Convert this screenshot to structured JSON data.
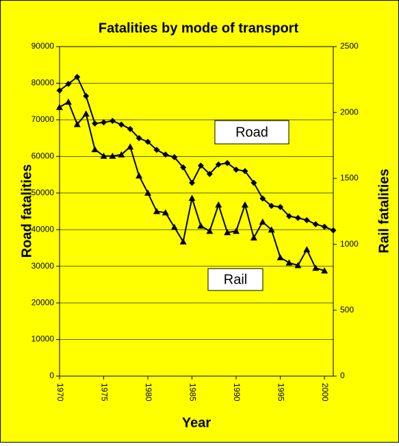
{
  "chart_data": {
    "type": "line",
    "title": "Fatalities by mode of transport",
    "xlabel": "Year",
    "ylabel": "Road fatalities",
    "y2label": "Rail fatalities",
    "annotations": [
      "Road",
      "Rail"
    ],
    "x": [
      1970,
      1971,
      1972,
      1973,
      1974,
      1975,
      1976,
      1977,
      1978,
      1979,
      1980,
      1981,
      1982,
      1983,
      1984,
      1985,
      1986,
      1987,
      1988,
      1989,
      1990,
      1991,
      1992,
      1993,
      1994,
      1995,
      1996,
      1997,
      1998,
      1999,
      2000,
      2001
    ],
    "series": [
      {
        "name": "Road",
        "color": "#000000",
        "marker": "diamond",
        "values": [
          78000,
          79800,
          81700,
          76500,
          69000,
          69300,
          69700,
          68700,
          67500,
          65000,
          64000,
          61800,
          60500,
          59800,
          57000,
          52800,
          57500,
          55200,
          57800,
          58200,
          56400,
          56000,
          52800,
          48500,
          46500,
          46200,
          43700,
          43200,
          42600,
          41500,
          40800,
          39800
        ]
      },
      {
        "name": "Rail",
        "color": "#000000",
        "marker": "triangle",
        "axis": "y2",
        "values": [
          2040,
          2080,
          1910,
          1990,
          1720,
          1670,
          1670,
          1680,
          1740,
          1520,
          1390,
          1250,
          1240,
          1130,
          1020,
          1350,
          1140,
          1100,
          1300,
          1090,
          1100,
          1300,
          1050,
          1170,
          1110,
          900,
          860,
          840,
          960,
          820,
          800,
          null
        ]
      }
    ],
    "xlim": [
      1970,
      2001
    ],
    "xticks": [
      1970,
      1975,
      1980,
      1985,
      1990,
      1995,
      2000
    ],
    "ylim": [
      0,
      90000
    ],
    "yticks": [
      0,
      10000,
      20000,
      30000,
      40000,
      50000,
      60000,
      70000,
      80000,
      90000
    ],
    "y2lim": [
      0,
      2500
    ],
    "y2ticks": [
      0,
      500,
      1000,
      1500,
      2000,
      2500
    ],
    "grid": true,
    "background": "#ffff00"
  }
}
